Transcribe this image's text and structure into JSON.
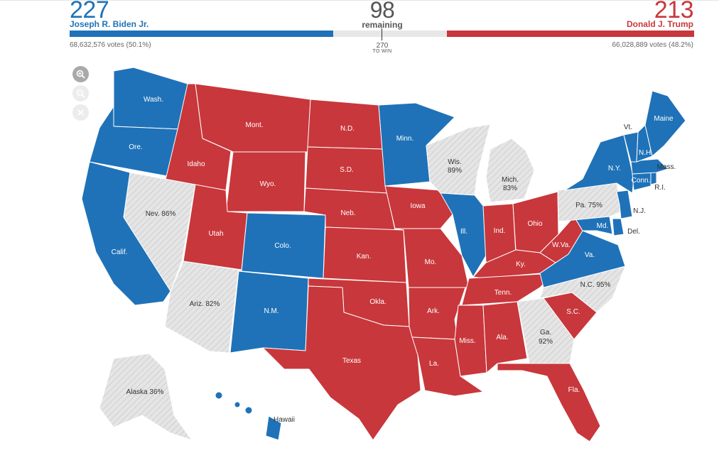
{
  "colors": {
    "biden": "#1f72b8",
    "trump": "#c8373b",
    "uncalled": "#e5e5e5",
    "remaining_bar": "#e7e7e7"
  },
  "header": {
    "biden": {
      "electoral_votes": "227",
      "name": "Joseph R. Biden Jr.",
      "popular_votes": "68,632,576 votes (50.1%)"
    },
    "trump": {
      "electoral_votes": "213",
      "name": "Donald J. Trump",
      "popular_votes": "66,028,889 votes (48.2%)"
    },
    "remaining": {
      "count": "98",
      "label": "remaining"
    },
    "to_win": {
      "number": "270",
      "label": "TO WIN"
    },
    "bar_shares": {
      "biden": 227,
      "remaining": 98,
      "trump": 213
    }
  },
  "controls": {
    "zoom_in_icon": "zoom-in-icon",
    "zoom_out_icon": "zoom-out-icon",
    "reset_icon": "close-icon"
  },
  "states": {
    "wa": {
      "label": "Wash.",
      "winner": "biden"
    },
    "or": {
      "label": "Ore.",
      "winner": "biden"
    },
    "ca": {
      "label": "Calif.",
      "winner": "biden"
    },
    "id": {
      "label": "Idaho",
      "winner": "trump"
    },
    "nv": {
      "label": "Nev. 86%",
      "winner": "uncalled"
    },
    "mt": {
      "label": "Mont.",
      "winner": "trump"
    },
    "wy": {
      "label": "Wyo.",
      "winner": "trump"
    },
    "ut": {
      "label": "Utah",
      "winner": "trump"
    },
    "az": {
      "label": "Ariz. 82%",
      "winner": "uncalled"
    },
    "co": {
      "label": "Colo.",
      "winner": "biden"
    },
    "nm": {
      "label": "N.M.",
      "winner": "biden"
    },
    "nd": {
      "label": "N.D.",
      "winner": "trump"
    },
    "sd": {
      "label": "S.D.",
      "winner": "trump"
    },
    "ne": {
      "label": "Neb.",
      "winner": "trump"
    },
    "ks": {
      "label": "Kan.",
      "winner": "trump"
    },
    "ok": {
      "label": "Okla.",
      "winner": "trump"
    },
    "tx": {
      "label": "Texas",
      "winner": "trump"
    },
    "mn": {
      "label": "Minn.",
      "winner": "biden"
    },
    "ia": {
      "label": "Iowa",
      "winner": "trump"
    },
    "mo": {
      "label": "Mo.",
      "winner": "trump"
    },
    "ar": {
      "label": "Ark.",
      "winner": "trump"
    },
    "la": {
      "label": "La.",
      "winner": "trump"
    },
    "wi": {
      "label": "Wis.",
      "pct": "89%",
      "winner": "uncalled"
    },
    "il": {
      "label": "Ill.",
      "winner": "biden"
    },
    "mi": {
      "label": "Mich.",
      "pct": "83%",
      "winner": "uncalled"
    },
    "in": {
      "label": "Ind.",
      "winner": "trump"
    },
    "oh": {
      "label": "Ohio",
      "winner": "trump"
    },
    "ky": {
      "label": "Ky.",
      "winner": "trump"
    },
    "tn": {
      "label": "Tenn.",
      "winner": "trump"
    },
    "ms": {
      "label": "Miss.",
      "winner": "trump"
    },
    "al": {
      "label": "Ala.",
      "winner": "trump"
    },
    "ga": {
      "label": "Ga.",
      "pct": "92%",
      "winner": "uncalled"
    },
    "fl": {
      "label": "Fla.",
      "winner": "trump"
    },
    "sc": {
      "label": "S.C.",
      "winner": "trump"
    },
    "nc": {
      "label": "N.C. 95%",
      "winner": "uncalled"
    },
    "va": {
      "label": "Va.",
      "winner": "biden"
    },
    "wv": {
      "label": "W.Va.",
      "winner": "trump"
    },
    "md": {
      "label": "Md.",
      "winner": "biden"
    },
    "de": {
      "label": "Del.",
      "winner": "biden"
    },
    "pa": {
      "label": "Pa. 75%",
      "winner": "uncalled"
    },
    "nj": {
      "label": "N.J.",
      "winner": "biden"
    },
    "ny": {
      "label": "N.Y.",
      "winner": "biden"
    },
    "ct": {
      "label": "Conn.",
      "winner": "biden"
    },
    "ri": {
      "label": "R.I.",
      "winner": "biden"
    },
    "ma": {
      "label": "Mass.",
      "winner": "biden"
    },
    "vt": {
      "label": "Vt.",
      "winner": "biden"
    },
    "nh": {
      "label": "N.H.",
      "winner": "biden"
    },
    "me": {
      "label": "Maine",
      "winner": "biden"
    },
    "ak": {
      "label": "Alaska 36%",
      "winner": "uncalled"
    },
    "hi": {
      "label": "Hawaii",
      "winner": "biden"
    }
  }
}
